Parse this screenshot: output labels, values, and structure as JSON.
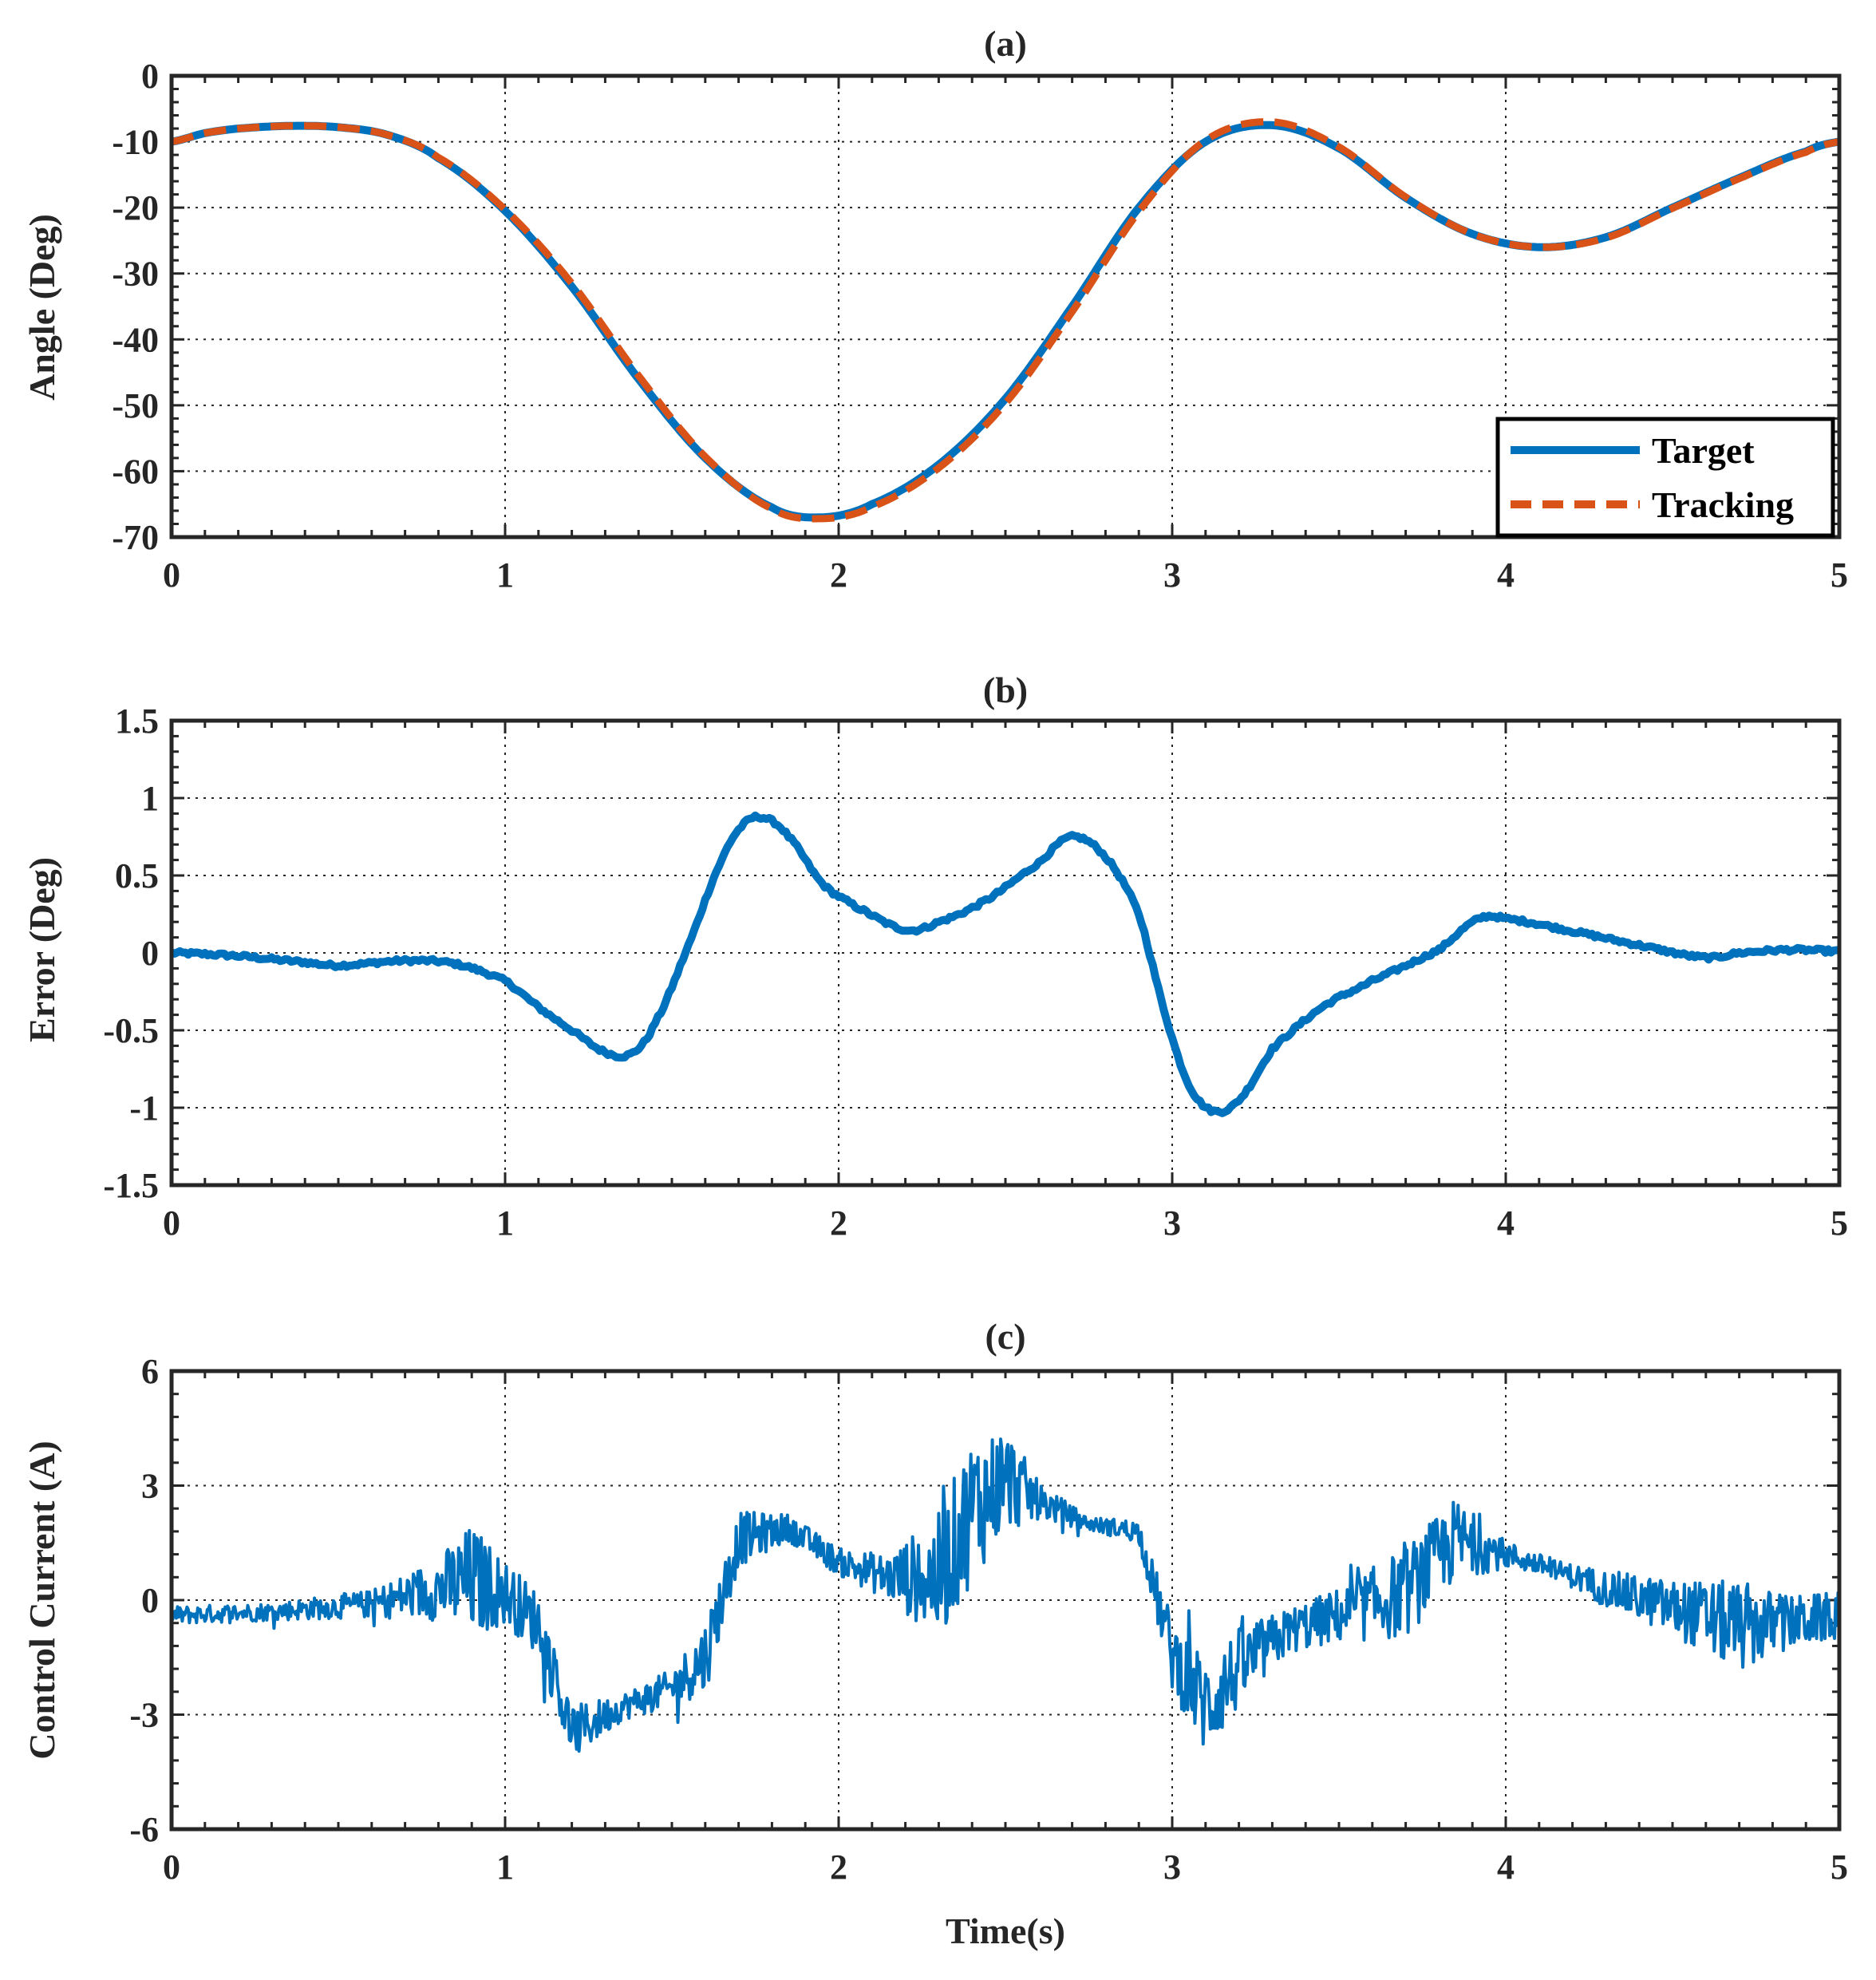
{
  "chart_data": [
    {
      "type": "line",
      "title": "(a)",
      "xlabel": "",
      "ylabel": "Angle (Deg)",
      "xlim": [
        0,
        5
      ],
      "ylim": [
        -70,
        0
      ],
      "xticks": [
        0,
        1,
        2,
        3,
        4,
        5
      ],
      "yticks": [
        0,
        -10,
        -20,
        -30,
        -40,
        -50,
        -60,
        -70
      ],
      "xtick_labels": [
        "0",
        "1",
        "2",
        "3",
        "4",
        "5"
      ],
      "ytick_labels": [
        "0",
        "-10",
        "-20",
        "-30",
        "-40",
        "-50",
        "-60",
        "-70"
      ],
      "grid": true,
      "legend_position": "bottom-right",
      "series": [
        {
          "name": "Target",
          "color": "#0072BD",
          "style": "solid",
          "x": [
            0,
            0.1,
            0.2,
            0.35,
            0.5,
            0.65,
            0.8,
            1.0,
            1.2,
            1.4,
            1.6,
            1.8,
            1.95,
            2.1,
            2.3,
            2.5,
            2.7,
            2.9,
            3.1,
            3.3,
            3.5,
            3.7,
            3.9,
            4.1,
            4.3,
            4.5,
            4.7,
            4.9,
            5.0
          ],
          "y": [
            -10,
            -8.7,
            -8.0,
            -7.6,
            -7.8,
            -9.0,
            -12.5,
            -20.5,
            -32,
            -46,
            -58,
            -65.5,
            -67,
            -65,
            -59,
            -49,
            -35,
            -20,
            -10,
            -7.5,
            -11,
            -18.5,
            -24,
            -26,
            -24.5,
            -20,
            -15.5,
            -11.5,
            -10
          ]
        },
        {
          "name": "Tracking",
          "color": "#D95319",
          "style": "dashed",
          "x": [
            0,
            0.1,
            0.2,
            0.35,
            0.5,
            0.65,
            0.8,
            1.0,
            1.2,
            1.4,
            1.6,
            1.8,
            1.95,
            2.1,
            2.3,
            2.5,
            2.7,
            2.9,
            3.1,
            3.3,
            3.5,
            3.7,
            3.9,
            4.1,
            4.3,
            4.5,
            4.7,
            4.9,
            5.0
          ],
          "y": [
            -10,
            -8.7,
            -8.0,
            -7.6,
            -7.8,
            -9.0,
            -12.4,
            -20.3,
            -31.5,
            -45.5,
            -57.8,
            -65.7,
            -67.2,
            -65.4,
            -59.5,
            -49.7,
            -35.8,
            -20.6,
            -9.8,
            -7.0,
            -10.8,
            -18.4,
            -24.0,
            -26.0,
            -24.6,
            -20.1,
            -15.6,
            -11.6,
            -10
          ]
        }
      ]
    },
    {
      "type": "line",
      "title": "(b)",
      "xlabel": "",
      "ylabel": "Error (Deg)",
      "xlim": [
        0,
        5
      ],
      "ylim": [
        -1.5,
        1.5
      ],
      "xticks": [
        0,
        1,
        2,
        3,
        4,
        5
      ],
      "yticks": [
        1.5,
        1,
        0.5,
        0,
        -0.5,
        -1,
        -1.5
      ],
      "xtick_labels": [
        "0",
        "1",
        "2",
        "3",
        "4",
        "5"
      ],
      "ytick_labels": [
        "1.5",
        "1",
        "0.5",
        "0",
        "-0.5",
        "-1",
        "-1.5"
      ],
      "grid": true,
      "series": [
        {
          "name": "Error",
          "color": "#0072BD",
          "style": "solid",
          "x": [
            0,
            0.2,
            0.4,
            0.5,
            0.7,
            0.85,
            1.0,
            1.1,
            1.2,
            1.3,
            1.38,
            1.45,
            1.55,
            1.65,
            1.72,
            1.78,
            1.85,
            1.95,
            2.05,
            2.2,
            2.3,
            2.45,
            2.6,
            2.7,
            2.8,
            2.9,
            2.98,
            3.05,
            3.12,
            3.2,
            3.3,
            3.45,
            3.6,
            3.8,
            3.92,
            4.0,
            4.2,
            4.4,
            4.6,
            4.7,
            4.85,
            5.0
          ],
          "y": [
            0,
            -0.02,
            -0.06,
            -0.08,
            -0.05,
            -0.07,
            -0.18,
            -0.35,
            -0.5,
            -0.64,
            -0.65,
            -0.45,
            0.05,
            0.6,
            0.84,
            0.87,
            0.75,
            0.45,
            0.3,
            0.15,
            0.2,
            0.35,
            0.58,
            0.75,
            0.62,
            0.25,
            -0.4,
            -0.85,
            -1.02,
            -0.95,
            -0.62,
            -0.35,
            -0.18,
            0.02,
            0.22,
            0.22,
            0.14,
            0.05,
            -0.03,
            0.0,
            0.02,
            0.01
          ]
        }
      ]
    },
    {
      "type": "line",
      "title": "(c)",
      "xlabel": "Time(s)",
      "ylabel": "Control Current (A)",
      "xlim": [
        0,
        5
      ],
      "ylim": [
        -6,
        6
      ],
      "xticks": [
        0,
        1,
        2,
        3,
        4,
        5
      ],
      "yticks": [
        6,
        3,
        0,
        -3,
        -6
      ],
      "xtick_labels": [
        "0",
        "1",
        "2",
        "3",
        "4",
        "5"
      ],
      "ytick_labels": [
        "6",
        "3",
        "0",
        "-3",
        "-6"
      ],
      "grid": true,
      "series": [
        {
          "name": "Control Current",
          "color": "#0072BD",
          "style": "solid",
          "x": [
            0,
            0.3,
            0.6,
            0.8,
            0.9,
            1.0,
            1.1,
            1.2,
            1.35,
            1.5,
            1.6,
            1.7,
            1.85,
            2.0,
            2.15,
            2.3,
            2.4,
            2.5,
            2.6,
            2.75,
            2.9,
            3.0,
            3.1,
            3.2,
            3.35,
            3.5,
            3.7,
            3.85,
            4.0,
            4.15,
            4.3,
            4.5,
            4.7,
            4.85,
            5.0
          ],
          "y": [
            -0.4,
            -0.3,
            -0.1,
            0.3,
            0.5,
            0.2,
            -0.6,
            -3.5,
            -2.8,
            -2.3,
            -1.5,
            1.6,
            1.9,
            1.0,
            0.6,
            0.6,
            2.4,
            3.2,
            2.6,
            2.0,
            1.8,
            -1.4,
            -2.8,
            -1.8,
            -0.8,
            -0.4,
            0.2,
            1.6,
            1.2,
            0.8,
            0.3,
            -0.2,
            -0.7,
            -0.6,
            -0.4
          ],
          "noise_amplitude": [
            0.4,
            0.4,
            0.6,
            1.4,
            2.5,
            1.4,
            1.4,
            1.2,
            0.6,
            0.8,
            1.6,
            1.2,
            0.6,
            0.6,
            1.0,
            2.8,
            3.2,
            2.4,
            0.8,
            0.3,
            0.5,
            1.6,
            2.2,
            1.8,
            1.0,
            1.2,
            2.0,
            1.8,
            0.6,
            0.4,
            0.8,
            1.2,
            2.0,
            1.2,
            1.0
          ]
        }
      ]
    }
  ]
}
